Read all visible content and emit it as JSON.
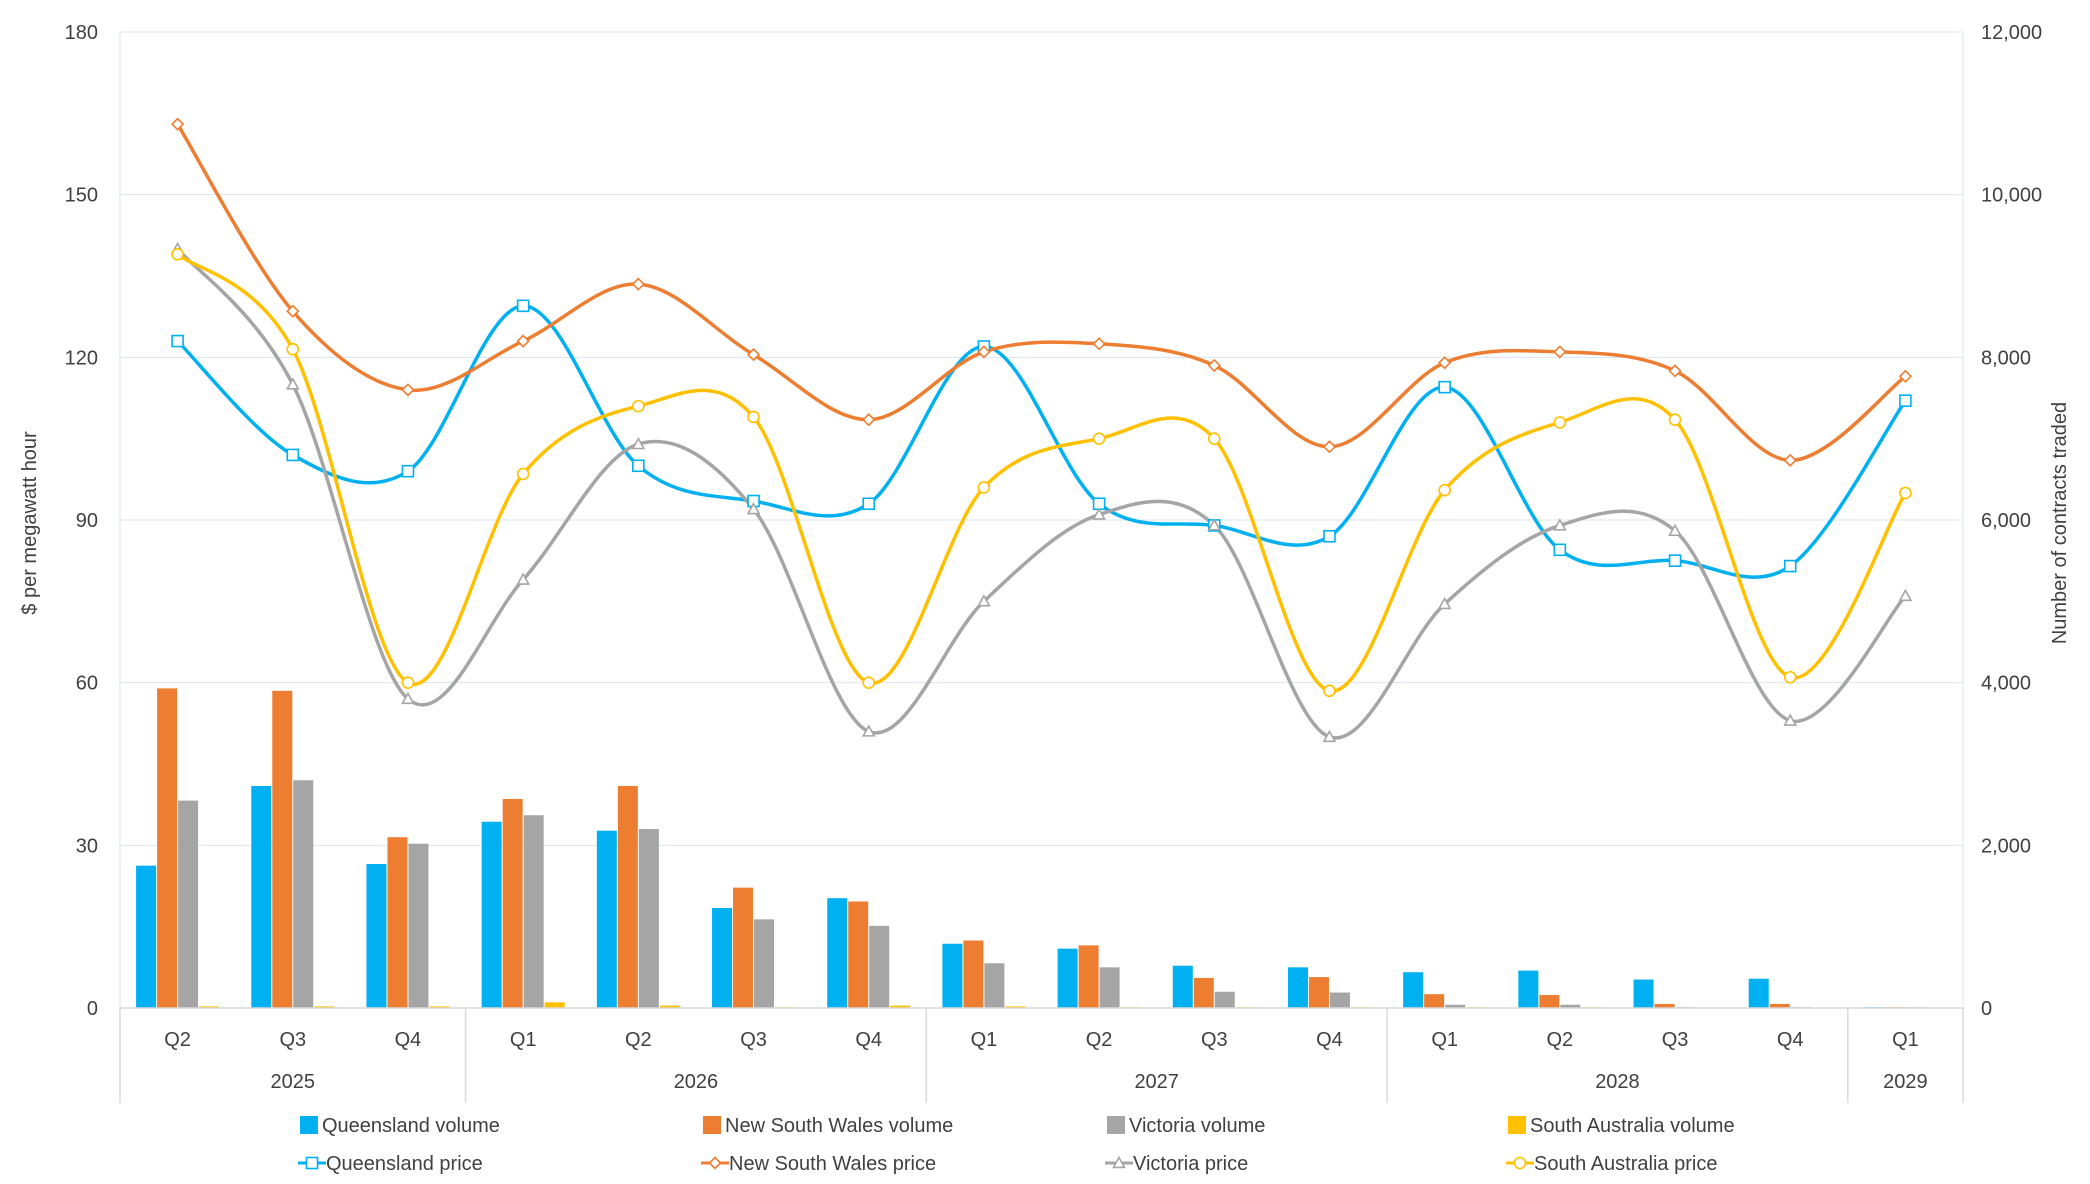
{
  "chart_data": {
    "type": "bar",
    "ylabel_left": "$ per megawatt hour",
    "ylabel_right": "Number of contracts traded",
    "ylim_left": [
      0,
      180
    ],
    "ylim_right": [
      0,
      12000
    ],
    "yticks_left": [
      "0",
      "30",
      "60",
      "90",
      "120",
      "150",
      "180"
    ],
    "yticks_right": [
      "0",
      "2,000",
      "4,000",
      "6,000",
      "8,000",
      "10,000",
      "12,000"
    ],
    "grid": true,
    "legend_position": "bottom",
    "categories": [
      "Q2",
      "Q3",
      "Q4",
      "Q1",
      "Q2",
      "Q3",
      "Q4",
      "Q1",
      "Q2",
      "Q3",
      "Q4",
      "Q1",
      "Q2",
      "Q3",
      "Q4",
      "Q1"
    ],
    "year_groups": [
      {
        "label": "2025",
        "count": 3
      },
      {
        "label": "2026",
        "count": 4
      },
      {
        "label": "2027",
        "count": 4
      },
      {
        "label": "2028",
        "count": 4
      },
      {
        "label": "2029",
        "count": 1
      }
    ],
    "bar_series": [
      {
        "name": "Queensland volume",
        "color": "#00B0F0",
        "axis": "right",
        "values": [
          1750,
          2730,
          1770,
          2290,
          2180,
          1230,
          1350,
          790,
          730,
          520,
          500,
          440,
          460,
          350,
          360,
          10
        ]
      },
      {
        "name": "New South Wales volume",
        "color": "#ED7D31",
        "axis": "right",
        "values": [
          3930,
          3900,
          2100,
          2570,
          2730,
          1480,
          1310,
          830,
          770,
          370,
          380,
          170,
          160,
          50,
          50,
          10
        ]
      },
      {
        "name": "Victoria volume",
        "color": "#A5A5A5",
        "axis": "right",
        "values": [
          2550,
          2800,
          2020,
          2370,
          2200,
          1090,
          1010,
          550,
          500,
          200,
          190,
          40,
          40,
          10,
          10,
          10
        ]
      },
      {
        "name": "South Australia volume",
        "color": "#FFC000",
        "axis": "right",
        "values": [
          20,
          20,
          20,
          70,
          30,
          10,
          30,
          20,
          10,
          10,
          10,
          10,
          10,
          5,
          5,
          5
        ]
      }
    ],
    "line_series": [
      {
        "name": "Queensland price",
        "color": "#00B0F0",
        "marker": "square",
        "axis": "left",
        "values": [
          123,
          102,
          99,
          129.5,
          100,
          93.5,
          93,
          122,
          93,
          89,
          87,
          114.5,
          84.5,
          82.5,
          81.5,
          112
        ]
      },
      {
        "name": "New South Wales price",
        "color": "#ED7D31",
        "marker": "diamond",
        "axis": "left",
        "values": [
          163,
          128.5,
          114,
          123,
          133.5,
          120.5,
          108.5,
          121,
          122.5,
          118.5,
          103.5,
          119,
          121,
          117.5,
          101,
          116.5
        ]
      },
      {
        "name": "Victoria price",
        "color": "#A5A5A5",
        "marker": "triangle",
        "axis": "left",
        "values": [
          140,
          115,
          57,
          79,
          104,
          92,
          51,
          75,
          91,
          89,
          50,
          74.5,
          89,
          88,
          53,
          76
        ]
      },
      {
        "name": "South Australia price",
        "color": "#FFC000",
        "marker": "circle",
        "axis": "left",
        "values": [
          139,
          121.5,
          60,
          98.5,
          111,
          109,
          60,
          96,
          105,
          105,
          58.5,
          95.5,
          108,
          108.5,
          61,
          95
        ]
      }
    ]
  }
}
